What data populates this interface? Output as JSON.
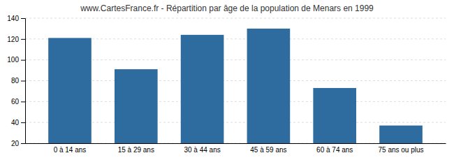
{
  "chart_data": {
    "type": "bar",
    "title": "www.CartesFrance.fr - Répartition par âge de la population de Menars en 1999",
    "categories": [
      "0 à 14 ans",
      "15 à 29 ans",
      "30 à 44 ans",
      "45 à 59 ans",
      "60 à 74 ans",
      "75 ans ou plus"
    ],
    "values": [
      121,
      91,
      124,
      130,
      73,
      37
    ],
    "color": "#2e6b9e",
    "ylim": [
      20,
      140
    ],
    "yticks": [
      20,
      40,
      60,
      80,
      100,
      120,
      140
    ],
    "grid": true
  }
}
